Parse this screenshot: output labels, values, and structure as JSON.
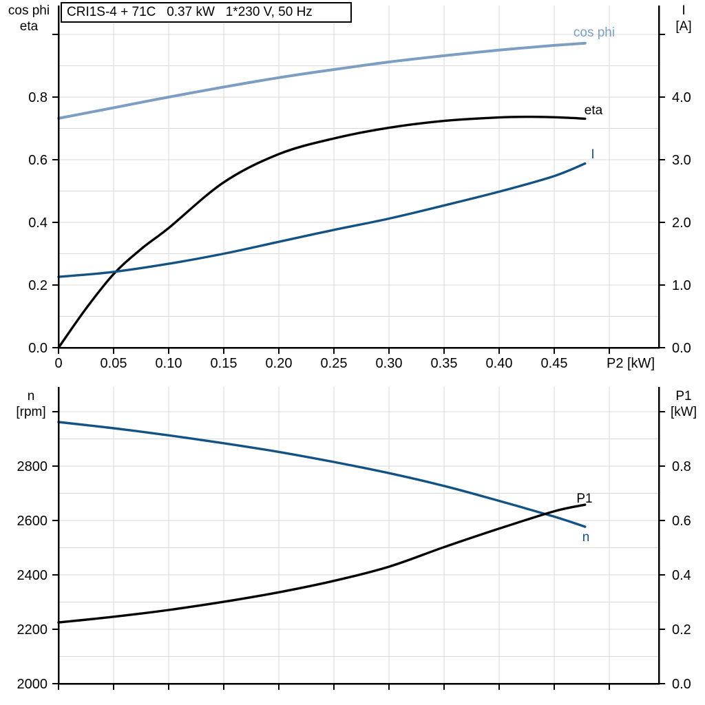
{
  "title_box": {
    "text": "CRI1S-4 + 71C   0.37 kW   1*230 V, 50 Hz"
  },
  "colors": {
    "cos_phi": "#7D9EC2",
    "current": "#135282",
    "eta": "#000000",
    "p1": "#000000",
    "n": "#135282",
    "grid": "#D9D9D9",
    "axis": "#000000",
    "text": "#000000"
  },
  "chart_data": [
    {
      "type": "line",
      "title": "CRI1S-4 + 71C   0.37 kW   1*230 V, 50 Hz",
      "x_axis": {
        "label": "P2 [kW]",
        "min": 0,
        "max": 0.545,
        "tick_values": [
          0,
          0.05,
          0.1,
          0.15,
          0.2,
          0.25,
          0.3,
          0.35,
          0.4,
          0.45,
          0.5
        ],
        "tick_labels": [
          "0",
          "0.05",
          "0.10",
          "0.15",
          "0.20",
          "0.25",
          "0.30",
          "0.35",
          "0.40",
          "0.45",
          ""
        ],
        "grid_values": [
          0.05,
          0.1,
          0.15,
          0.2,
          0.25,
          0.3,
          0.35,
          0.4,
          0.45,
          0.5
        ]
      },
      "y_left": {
        "title_lines": [
          "cos phi",
          "eta"
        ],
        "min": 0,
        "max": 1.0923,
        "tick_values": [
          0.0,
          0.2,
          0.4,
          0.6,
          0.8,
          1.0
        ],
        "tick_labels": [
          "0.0",
          "0.2",
          "0.4",
          "0.6",
          "0.8",
          ""
        ],
        "grid_values": [
          0.1,
          0.2,
          0.3,
          0.4,
          0.5,
          0.6,
          0.7,
          0.8,
          0.9,
          1.0
        ],
        "grid_on": true
      },
      "y_right": {
        "title_lines": [
          "I",
          "[A]"
        ],
        "min": 0,
        "max": 5.4615,
        "tick_values": [
          0.0,
          1.0,
          2.0,
          3.0,
          4.0,
          5.0
        ],
        "tick_labels": [
          "0.0",
          "1.0",
          "2.0",
          "3.0",
          "4.0",
          ""
        ],
        "grid_values": [],
        "grid_on": false
      },
      "series": [
        {
          "name": "cos phi",
          "axis": "left",
          "color_key": "cos_phi",
          "width": 4,
          "points": [
            [
              0,
              0.732
            ],
            [
              0.05,
              0.766
            ],
            [
              0.1,
              0.8
            ],
            [
              0.15,
              0.832
            ],
            [
              0.2,
              0.862
            ],
            [
              0.25,
              0.888
            ],
            [
              0.3,
              0.912
            ],
            [
              0.35,
              0.932
            ],
            [
              0.4,
              0.95
            ],
            [
              0.45,
              0.965
            ],
            [
              0.478,
              0.972
            ]
          ]
        },
        {
          "name": "eta",
          "axis": "left",
          "color_key": "eta",
          "width": 3.4,
          "points": [
            [
              0,
              0.0
            ],
            [
              0.025,
              0.125
            ],
            [
              0.05,
              0.235
            ],
            [
              0.075,
              0.315
            ],
            [
              0.1,
              0.382
            ],
            [
              0.15,
              0.528
            ],
            [
              0.2,
              0.618
            ],
            [
              0.25,
              0.668
            ],
            [
              0.3,
              0.702
            ],
            [
              0.35,
              0.724
            ],
            [
              0.4,
              0.735
            ],
            [
              0.43,
              0.737
            ],
            [
              0.455,
              0.735
            ],
            [
              0.478,
              0.731
            ]
          ]
        },
        {
          "name": "I",
          "axis": "right",
          "color_key": "current",
          "width": 3.4,
          "points": [
            [
              0,
              1.13
            ],
            [
              0.05,
              1.21
            ],
            [
              0.1,
              1.34
            ],
            [
              0.15,
              1.5
            ],
            [
              0.2,
              1.69
            ],
            [
              0.25,
              1.88
            ],
            [
              0.3,
              2.06
            ],
            [
              0.35,
              2.27
            ],
            [
              0.4,
              2.49
            ],
            [
              0.45,
              2.74
            ],
            [
              0.478,
              2.94
            ]
          ]
        }
      ]
    },
    {
      "type": "line",
      "title": "",
      "x_axis": {
        "label": "",
        "min": 0,
        "max": 0.545,
        "tick_values": [
          0,
          0.05,
          0.1,
          0.15,
          0.2,
          0.25,
          0.3,
          0.35,
          0.4,
          0.45,
          0.5
        ],
        "tick_labels": [
          "",
          "",
          "",
          "",
          "",
          "",
          "",
          "",
          "",
          "",
          ""
        ],
        "grid_values": [
          0.05,
          0.1,
          0.15,
          0.2,
          0.25,
          0.3,
          0.35,
          0.4,
          0.45,
          0.5
        ]
      },
      "y_left": {
        "title_lines": [
          "n",
          "[rpm]"
        ],
        "min": 2000,
        "max": 3091,
        "tick_values": [
          2000,
          2200,
          2400,
          2600,
          2800,
          3000
        ],
        "tick_labels": [
          "2000",
          "2200",
          "2400",
          "2600",
          "2800",
          ""
        ],
        "grid_values": [],
        "grid_on": false
      },
      "y_right": {
        "title_lines": [
          "P1",
          "[kW]"
        ],
        "min": 0,
        "max": 1.0911,
        "tick_values": [
          0.0,
          0.2,
          0.4,
          0.6,
          0.8,
          1.0
        ],
        "tick_labels": [
          "0.0",
          "0.2",
          "0.4",
          "0.6",
          "0.8",
          ""
        ],
        "grid_values": [
          0.1,
          0.2,
          0.3,
          0.4,
          0.5,
          0.6,
          0.7,
          0.8,
          0.9,
          1.0
        ],
        "grid_on": true
      },
      "series": [
        {
          "name": "n",
          "axis": "left",
          "color_key": "n",
          "width": 3.4,
          "points": [
            [
              0,
              2962
            ],
            [
              0.05,
              2939
            ],
            [
              0.1,
              2913
            ],
            [
              0.15,
              2884
            ],
            [
              0.2,
              2852
            ],
            [
              0.25,
              2815
            ],
            [
              0.3,
              2774
            ],
            [
              0.35,
              2727
            ],
            [
              0.4,
              2672
            ],
            [
              0.45,
              2614
            ],
            [
              0.478,
              2577
            ]
          ]
        },
        {
          "name": "P1",
          "axis": "right",
          "color_key": "p1",
          "width": 3.4,
          "points": [
            [
              0,
              0.225
            ],
            [
              0.05,
              0.246
            ],
            [
              0.1,
              0.271
            ],
            [
              0.15,
              0.301
            ],
            [
              0.2,
              0.336
            ],
            [
              0.25,
              0.378
            ],
            [
              0.3,
              0.43
            ],
            [
              0.35,
              0.502
            ],
            [
              0.4,
              0.57
            ],
            [
              0.45,
              0.634
            ],
            [
              0.478,
              0.658
            ]
          ]
        }
      ]
    }
  ]
}
